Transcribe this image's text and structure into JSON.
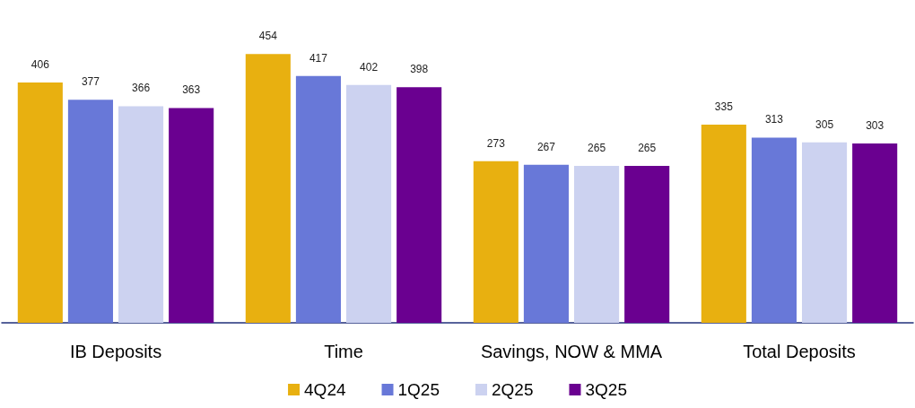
{
  "chart_data": {
    "type": "bar",
    "categories": [
      "IB Deposits",
      "Time",
      "Savings, NOW & MMA",
      "Total Deposits"
    ],
    "series": [
      {
        "name": "4Q24",
        "color": "#e8b010",
        "values": [
          406,
          454,
          273,
          335
        ]
      },
      {
        "name": "1Q25",
        "color": "#6878d8",
        "values": [
          377,
          417,
          267,
          313
        ]
      },
      {
        "name": "2Q25",
        "color": "#ccd2f0",
        "values": [
          366,
          402,
          265,
          305
        ]
      },
      {
        "name": "3Q25",
        "color": "#6a0090",
        "values": [
          363,
          398,
          265,
          303
        ]
      }
    ],
    "data_labels": true,
    "legend": "bottom"
  }
}
